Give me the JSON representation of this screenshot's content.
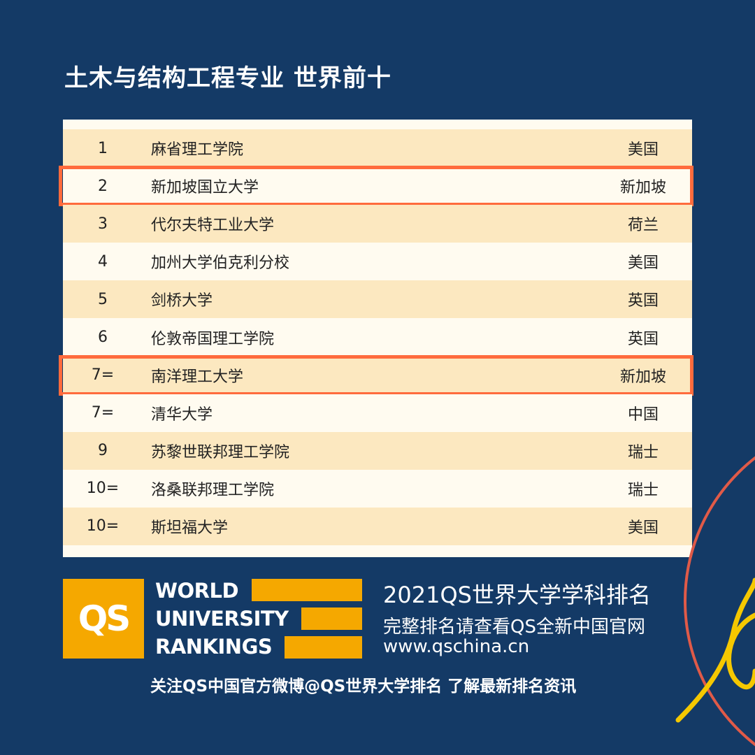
{
  "title": "土木与结构工程专业 世界前十",
  "rankings": [
    {
      "rank": "1",
      "name": "麻省理工学院",
      "country": "美国",
      "highlighted": false
    },
    {
      "rank": "2",
      "name": "新加坡国立大学",
      "country": "新加坡",
      "highlighted": true
    },
    {
      "rank": "3",
      "name": "代尔夫特工业大学",
      "country": "荷兰",
      "highlighted": false
    },
    {
      "rank": "4",
      "name": "加州大学伯克利分校",
      "country": "美国",
      "highlighted": false
    },
    {
      "rank": "5",
      "name": "剑桥大学",
      "country": "英国",
      "highlighted": false
    },
    {
      "rank": "6",
      "name": "伦敦帝国理工学院",
      "country": "英国",
      "highlighted": false
    },
    {
      "rank": "7=",
      "name": "南洋理工大学",
      "country": "新加坡",
      "highlighted": true
    },
    {
      "rank": "7=",
      "name": "清华大学",
      "country": "中国",
      "highlighted": false
    },
    {
      "rank": "9",
      "name": "苏黎世联邦理工学院",
      "country": "瑞士",
      "highlighted": false
    },
    {
      "rank": "10=",
      "name": "洛桑联邦理工学院",
      "country": "瑞士",
      "highlighted": false
    },
    {
      "rank": "10=",
      "name": "斯坦福大学",
      "country": "美国",
      "highlighted": false
    }
  ],
  "footer": {
    "logo_text": "QS",
    "wur_lines": [
      "WORLD",
      "UNIVERSITY",
      "RANKINGS"
    ],
    "headline": "2021QS世界大学学科排名",
    "subline": "完整排名请查看QS全新中国官网",
    "url": "www.qschina.cn",
    "follow": "关注QS中国官方微博@QS世界大学排名 了解最新排名资讯"
  },
  "colors": {
    "background": "#143a66",
    "accent": "#f5a800",
    "highlight": "#ff6b3d",
    "row_beige": "#fce8c0",
    "row_cream": "#fffbf0"
  }
}
